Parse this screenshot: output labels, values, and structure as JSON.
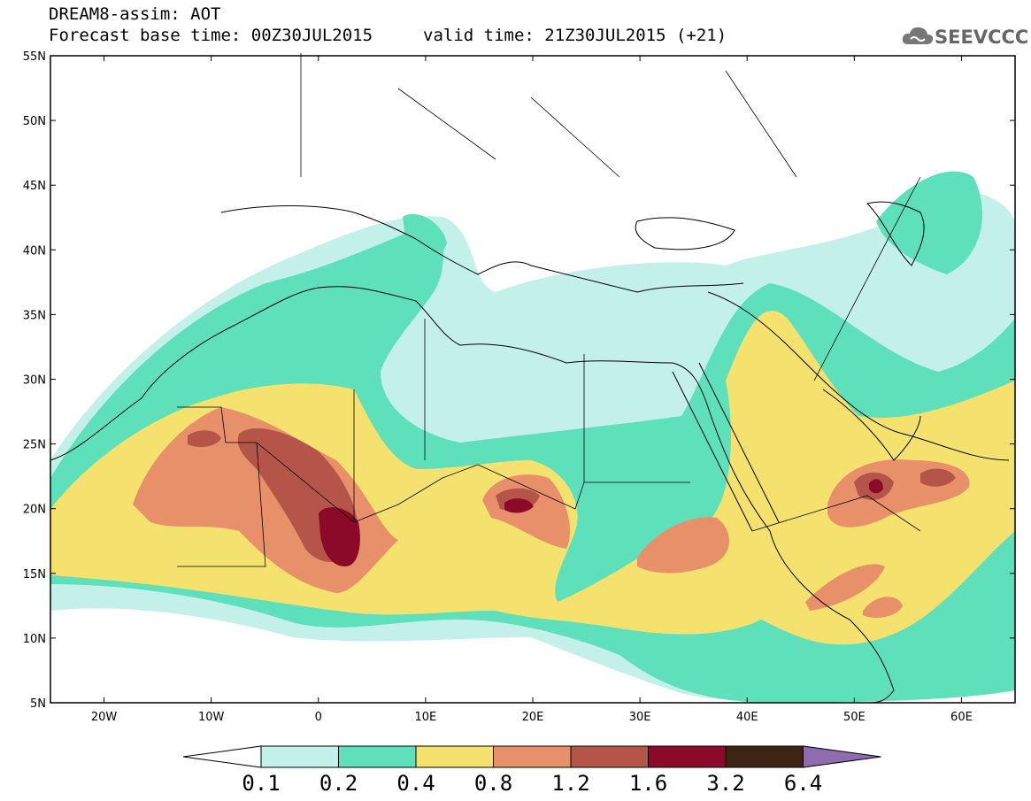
{
  "header": {
    "title": "DREAM8-assim: AOT",
    "base_time": "Forecast base time: 00Z30JUL2015",
    "valid_time": "valid time: 21Z30JUL2015 (+21)",
    "logo": "SEEVCCC"
  },
  "map": {
    "lon_range": [
      -25,
      65
    ],
    "lat_range": [
      5,
      55
    ],
    "lat_ticks": [
      "55N",
      "50N",
      "45N",
      "40N",
      "35N",
      "30N",
      "25N",
      "20N",
      "15N",
      "10N",
      "5N"
    ],
    "lon_ticks": [
      "20W",
      "10W",
      "0",
      "10E",
      "20E",
      "30E",
      "40E",
      "50E",
      "60E"
    ]
  },
  "colorbar": {
    "levels": [
      "0.1",
      "0.2",
      "0.4",
      "0.8",
      "1.2",
      "1.6",
      "3.2",
      "6.4"
    ],
    "colors": [
      "#c4f0ea",
      "#5ee0bb",
      "#f5e16e",
      "#e8906a",
      "#b5554a",
      "#8b0a2a",
      "#3d2414",
      "#8f6bb0"
    ]
  }
}
